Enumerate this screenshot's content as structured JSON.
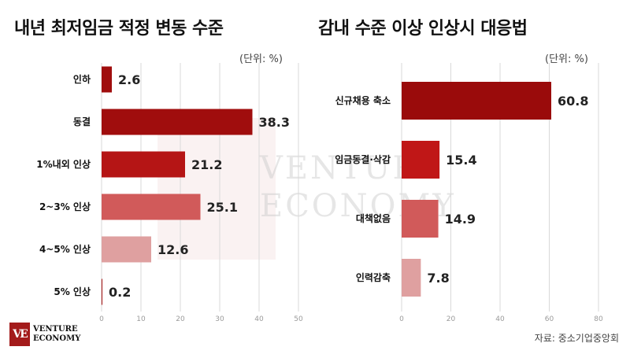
{
  "left_panel": {
    "title": "내년 최저임금 적정 변동 수준",
    "unit": "(단위: %)"
  },
  "right_panel": {
    "title": "감내 수준 이상 인상시 대응법",
    "unit": "(단위: %)"
  },
  "source": "자료: 중소기업중앙회",
  "logo": {
    "mark": "VE",
    "line1": "VENTURE",
    "line2": "ECONOMY"
  },
  "watermark": {
    "line1": "VENTURE",
    "line2": "ECONOMY"
  },
  "chart_data": [
    {
      "type": "bar",
      "orientation": "horizontal",
      "title": "내년 최저임금 적정 변동 수준",
      "unit": "(단위: %)",
      "categories": [
        "인하",
        "동결",
        "1%내외 인상",
        "2~3% 인상",
        "4~5% 인상",
        "5% 인상"
      ],
      "values": [
        2.6,
        38.3,
        21.2,
        25.1,
        12.6,
        0.2
      ],
      "colors": [
        "#a00d0d",
        "#a00d0d",
        "#b51515",
        "#d15a5a",
        "#dfa0a0",
        "#a00d0d"
      ],
      "xlim": [
        0,
        50
      ],
      "ticks": [
        0,
        10,
        20,
        30,
        40,
        50
      ],
      "grid": true
    },
    {
      "type": "bar",
      "orientation": "horizontal",
      "title": "감내 수준 이상 인상시 대응법",
      "unit": "(단위: %)",
      "categories": [
        "신규채용 축소",
        "임금동결·삭감",
        "대책없음",
        "인력감축"
      ],
      "values": [
        60.8,
        15.4,
        14.9,
        7.8
      ],
      "colors": [
        "#9a0b0b",
        "#c01717",
        "#d15a5a",
        "#dfa0a0"
      ],
      "xlim": [
        0,
        80
      ],
      "ticks": [
        0,
        20,
        40,
        60,
        80
      ],
      "grid": true
    }
  ]
}
